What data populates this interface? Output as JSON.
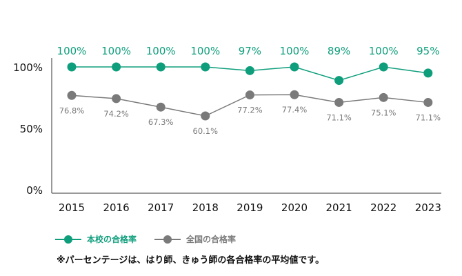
{
  "chart_data": {
    "type": "line",
    "categories": [
      "2015",
      "2016",
      "2017",
      "2018",
      "2019",
      "2020",
      "2021",
      "2022",
      "2023"
    ],
    "series": [
      {
        "name": "本校の合格率",
        "color": "#0e9e7c",
        "values": [
          100,
          100,
          100,
          100,
          97,
          100,
          89,
          100,
          95
        ],
        "labels": [
          "100%",
          "100%",
          "100%",
          "100%",
          "97%",
          "100%",
          "89%",
          "100%",
          "95%"
        ]
      },
      {
        "name": "全国の合格率",
        "color": "#7a7a7a",
        "values": [
          76.8,
          74.2,
          67.3,
          60.1,
          77.2,
          77.4,
          71.1,
          75.1,
          71.1
        ],
        "labels": [
          "76.8%",
          "74.2%",
          "67.3%",
          "60.1%",
          "77.2%",
          "77.4%",
          "71.1%",
          "75.1%",
          "71.1%"
        ]
      }
    ],
    "y_ticks": [
      {
        "value": 100,
        "label": "100%"
      },
      {
        "value": 50,
        "label": "50%"
      },
      {
        "value": 0,
        "label": "0%"
      }
    ],
    "ylim": [
      0,
      100
    ],
    "grid": false,
    "legend_position": "bottom-left",
    "footnote": "※パーセンテージは、はり師、きゅう師の各合格率の平均値です。"
  }
}
